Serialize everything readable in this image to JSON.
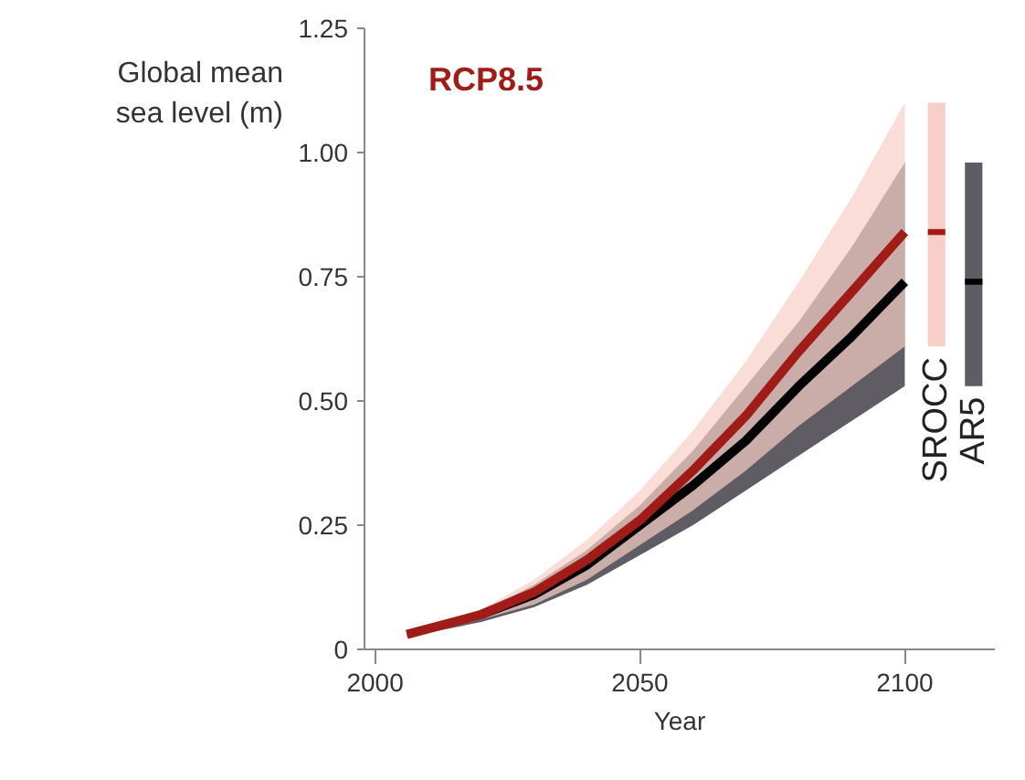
{
  "chart_data": {
    "type": "line",
    "ylabel": "Global mean\nsea level (m)",
    "xlabel": "Year",
    "annotations": [
      "RCP8.5"
    ],
    "x": [
      2006,
      2020,
      2030,
      2040,
      2050,
      2060,
      2070,
      2080,
      2090,
      2100
    ],
    "xlim": [
      1998,
      2117
    ],
    "xticks": [
      2000,
      2050,
      2100
    ],
    "ylim": [
      0,
      1.25
    ],
    "yticks": [
      0,
      0.25,
      {
        "value": 0.5,
        "label": "0.50"
      },
      0.75,
      {
        "value": 1,
        "label": "1.00"
      },
      1.25
    ],
    "grid": false,
    "series": [
      {
        "color": "#a01c17",
        "values": [
          0.03,
          0.07,
          0.115,
          0.18,
          0.26,
          0.36,
          0.47,
          0.6,
          0.72,
          0.84
        ],
        "lower": [
          0.025,
          0.06,
          0.09,
          0.14,
          0.21,
          0.28,
          0.36,
          0.45,
          0.53,
          0.61
        ],
        "upper": [
          0.035,
          0.08,
          0.14,
          0.22,
          0.32,
          0.44,
          0.58,
          0.74,
          0.91,
          1.1
        ]
      },
      {
        "color": "#000000",
        "values": [
          null,
          0.07,
          0.11,
          0.17,
          0.25,
          0.33,
          0.42,
          0.53,
          0.63,
          0.74
        ],
        "lower": [
          0.025,
          0.055,
          0.085,
          0.13,
          0.19,
          0.25,
          0.32,
          0.39,
          0.46,
          0.53
        ],
        "upper": [
          0.035,
          0.075,
          0.13,
          0.2,
          0.29,
          0.4,
          0.53,
          0.66,
          0.81,
          0.98
        ]
      },
      {
        "type": "box",
        "name": "SROCC",
        "color": "#f8cfc6",
        "x": [
          2106
        ],
        "boxes": [
          {
            "low": 0.61,
            "q1": 0.61,
            "median": 0.84,
            "q3": 1.1,
            "high": 1.1
          }
        ]
      },
      {
        "type": "box",
        "name": "AR5",
        "color": "#5f5c64",
        "x": [
          2113
        ],
        "boxes": [
          {
            "low": 0.53,
            "q1": 0.53,
            "median": 0.74,
            "q3": 0.98,
            "high": 0.98
          }
        ]
      }
    ]
  }
}
